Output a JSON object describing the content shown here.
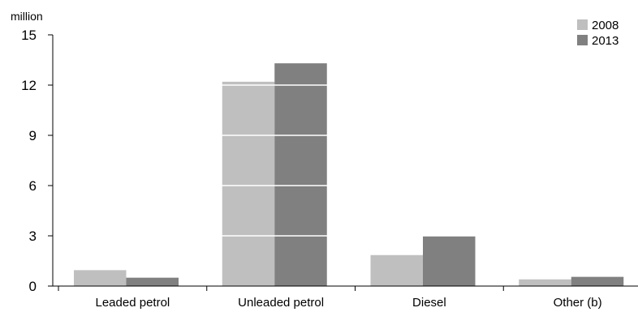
{
  "chart_data": {
    "type": "bar",
    "unit_label": "million",
    "categories": [
      "Leaded petrol",
      "Unleaded petrol",
      "Diesel",
      "Other (b)"
    ],
    "series": [
      {
        "name": "2008",
        "color": "#bfbfbf",
        "values": [
          0.95,
          12.2,
          1.85,
          0.4
        ]
      },
      {
        "name": "2013",
        "color": "#808080",
        "values": [
          0.5,
          13.3,
          3.0,
          0.55
        ]
      }
    ],
    "ylim": [
      0,
      15
    ],
    "yticks": [
      0,
      3,
      6,
      9,
      12,
      15
    ],
    "gridlines": "white lines over bars at tick values",
    "legend_position": "top-right"
  }
}
